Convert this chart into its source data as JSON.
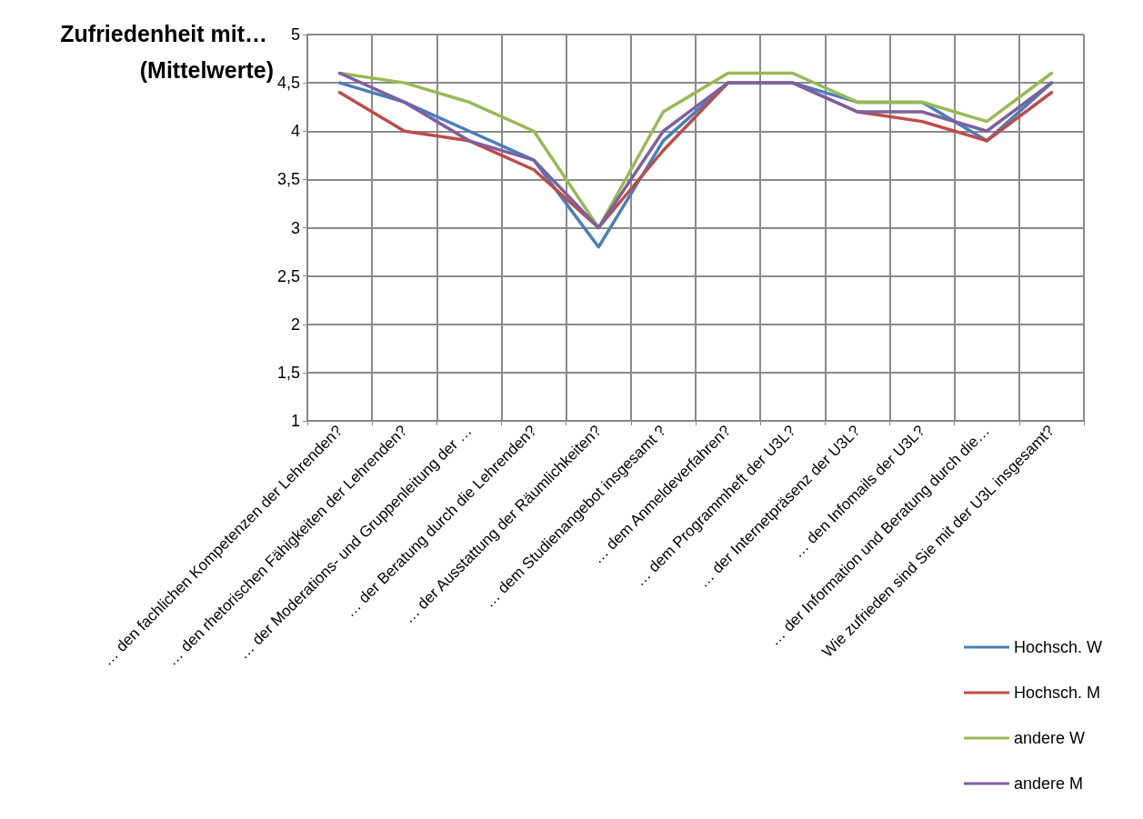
{
  "chart_data": {
    "type": "line",
    "title": "Zufriedenheit mit… (Mittelwerte)",
    "categories": [
      "… den fachlichen Kompetenzen der Lehrenden?",
      "… den rhetorischen Fähigkeiten der Lehrenden?",
      "… der Moderations- und Gruppenleitung der …",
      "… der Beratung durch die Lehrenden?",
      "… der Ausstattung der Räumlichkeiten?",
      "… dem Studienangebot insgesamt ?",
      "… dem Anmeldeverfahren?",
      "… dem Programmheft der U3L?",
      "… der Internetpräsenz der U3L?",
      "… den Infomails der U3L?",
      "… der Information und Beratung durch die…",
      "Wie zufrieden sind Sie mit der U3L insgesamt?"
    ],
    "series": [
      {
        "name": "Hochsch. W",
        "color": "#4a7ebb",
        "values": [
          4.5,
          4.3,
          4.0,
          3.7,
          2.8,
          3.9,
          4.5,
          4.5,
          4.3,
          4.3,
          3.9,
          4.5
        ]
      },
      {
        "name": "Hochsch. M",
        "color": "#be4b48",
        "values": [
          4.4,
          4.0,
          3.9,
          3.6,
          3.0,
          3.8,
          4.5,
          4.5,
          4.2,
          4.1,
          3.9,
          4.4
        ]
      },
      {
        "name": "andere W",
        "color": "#98b954",
        "values": [
          4.6,
          4.5,
          4.3,
          4.0,
          3.0,
          4.2,
          4.6,
          4.6,
          4.3,
          4.3,
          4.1,
          4.6
        ]
      },
      {
        "name": "andere M",
        "color": "#7d60a0",
        "values": [
          4.6,
          4.3,
          3.9,
          3.7,
          3.0,
          4.0,
          4.5,
          4.5,
          4.2,
          4.2,
          4.0,
          4.5
        ]
      }
    ],
    "ylim": [
      1,
      5
    ],
    "yticks": [
      1,
      {
        "value": 1.5,
        "label": "1,5"
      },
      2,
      {
        "value": 2.5,
        "label": "2,5"
      },
      3,
      {
        "value": 3.5,
        "label": "3,5"
      },
      4,
      {
        "value": 4.5,
        "label": "4,5"
      },
      5
    ],
    "grid": true,
    "legend": "bottom right",
    "marker": "none",
    "line_style": "solid"
  }
}
